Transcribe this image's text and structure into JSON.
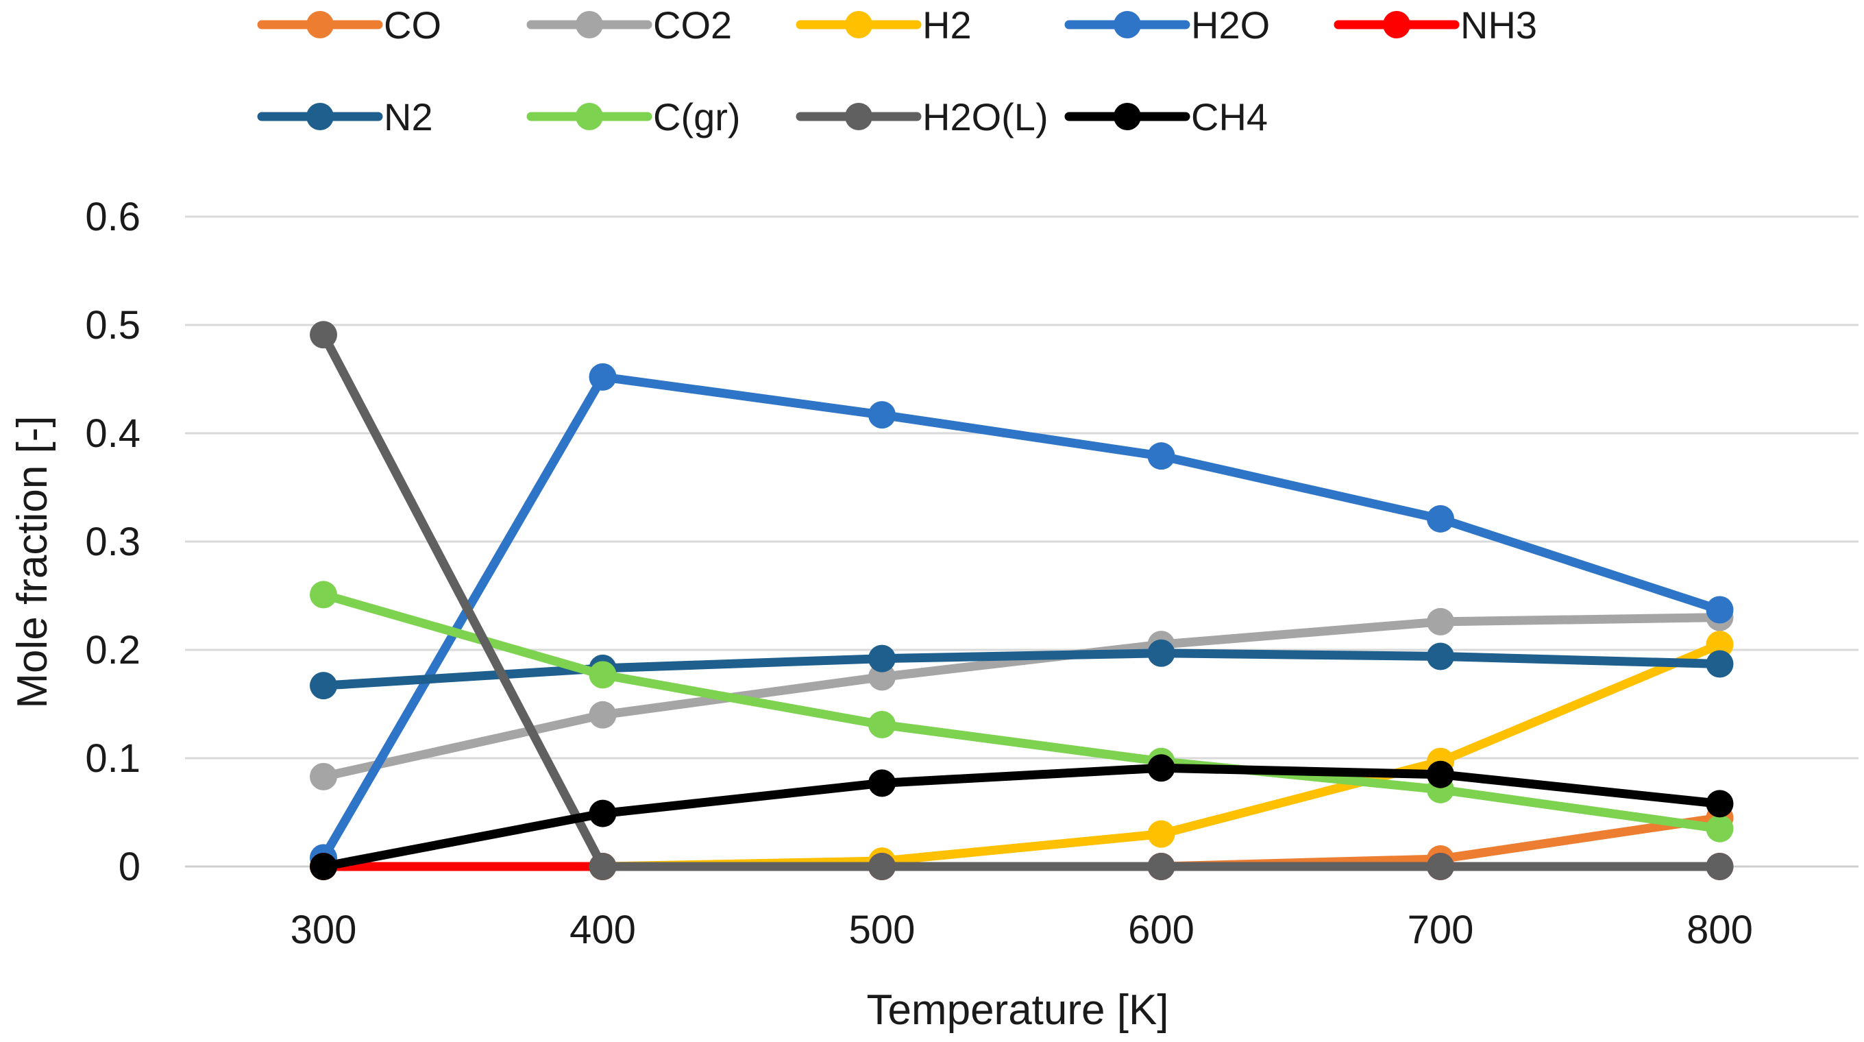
{
  "chart_data": {
    "type": "line",
    "title": "",
    "xlabel": "Temperature [K]",
    "ylabel": "Mole fraction [-]",
    "x": [
      300,
      400,
      500,
      600,
      700,
      800
    ],
    "ylim": [
      0,
      0.6
    ],
    "yticks": [
      "0",
      "0.1",
      "0.2",
      "0.3",
      "0.4",
      "0.5",
      "0.6"
    ],
    "xticks": [
      "300",
      "400",
      "500",
      "600",
      "700",
      "800"
    ],
    "grid": "horizontal",
    "legend_position": "top",
    "series": [
      {
        "name": "CO",
        "color": "#ED7D31",
        "values": [
          0,
          0,
          0,
          0,
          0.007,
          0.045
        ]
      },
      {
        "name": "CO2",
        "color": "#A5A5A5",
        "values": [
          0.083,
          0.14,
          0.175,
          0.205,
          0.226,
          0.23
        ]
      },
      {
        "name": "H2",
        "color": "#FFC000",
        "values": [
          0,
          0,
          0.005,
          0.03,
          0.097,
          0.205
        ]
      },
      {
        "name": "H2O",
        "color": "#2E75C8",
        "values": [
          0.008,
          0.452,
          0.417,
          0.379,
          0.321,
          0.237
        ]
      },
      {
        "name": "NH3",
        "color": "#FF0000",
        "values": [
          0,
          0,
          0,
          0,
          0,
          0
        ]
      },
      {
        "name": "N2",
        "color": "#1F5F8E",
        "values": [
          0.167,
          0.183,
          0.192,
          0.197,
          0.194,
          0.187
        ]
      },
      {
        "name": "C(gr)",
        "color": "#7DD34F",
        "values": [
          0.251,
          0.177,
          0.131,
          0.097,
          0.071,
          0.035
        ]
      },
      {
        "name": "H2O(L)",
        "color": "#606060",
        "values": [
          0.491,
          0,
          0,
          0,
          0,
          0
        ]
      },
      {
        "name": "CH4",
        "color": "#000000",
        "values": [
          0,
          0.049,
          0.077,
          0.091,
          0.085,
          0.058
        ]
      }
    ]
  }
}
